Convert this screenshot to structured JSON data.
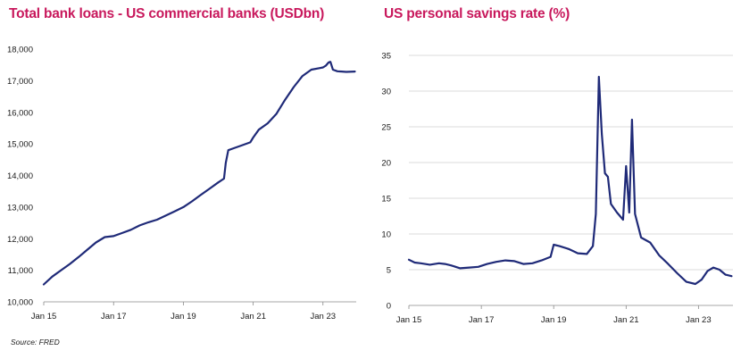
{
  "source": "Source: FRED",
  "colors": {
    "title": "#c8185c",
    "line": "#1f2a78",
    "grid": "#cfcfcf",
    "text": "#1a1a1a"
  },
  "chart_data": [
    {
      "type": "line",
      "title": "Total bank loans - US commercial banks (USDbn)",
      "xlabel": "",
      "ylabel": "",
      "ylim": [
        10000,
        18000
      ],
      "xlim": [
        "2015-01-01",
        "2023-12-15"
      ],
      "grid": false,
      "legend": "none",
      "y_ticks": [
        10000,
        11000,
        12000,
        13000,
        14000,
        15000,
        16000,
        17000,
        18000
      ],
      "y_tick_labels": [
        "10,000",
        "11,000",
        "12,000",
        "13,000",
        "14,000",
        "15,000",
        "16,000",
        "17,000",
        "18,000"
      ],
      "x_ticks": [
        "2015-01-01",
        "2017-01-01",
        "2019-01-01",
        "2021-01-01",
        "2023-01-01"
      ],
      "x_tick_labels": [
        "Jan 15",
        "Jan 17",
        "Jan 19",
        "Jan 21",
        "Jan 23"
      ],
      "series": [
        {
          "x": [
            "2015-01-01",
            "2015-04-01",
            "2015-07-01",
            "2015-10-01",
            "2016-01-01",
            "2016-04-01",
            "2016-07-01",
            "2016-10-01",
            "2017-01-01",
            "2017-04-01",
            "2017-07-01",
            "2017-10-01",
            "2018-01-01",
            "2018-04-01",
            "2018-07-01",
            "2018-10-01",
            "2019-01-01",
            "2019-04-01",
            "2019-07-01",
            "2019-10-01",
            "2020-01-01",
            "2020-03-01",
            "2020-03-20",
            "2020-04-15",
            "2020-06-01",
            "2020-09-01",
            "2020-12-01",
            "2021-01-01",
            "2021-03-01",
            "2021-06-01",
            "2021-09-01",
            "2021-12-01",
            "2022-03-01",
            "2022-06-01",
            "2022-09-01",
            "2022-12-01",
            "2023-01-01",
            "2023-02-01",
            "2023-03-01",
            "2023-03-20",
            "2023-04-15",
            "2023-06-01",
            "2023-09-01",
            "2023-12-01"
          ],
          "values": [
            10550,
            10800,
            11000,
            11200,
            11420,
            11650,
            11880,
            12050,
            12080,
            12180,
            12280,
            12420,
            12520,
            12600,
            12730,
            12860,
            13000,
            13180,
            13380,
            13580,
            13780,
            13900,
            14400,
            14800,
            14850,
            14950,
            15050,
            15200,
            15450,
            15650,
            15950,
            16400,
            16800,
            17150,
            17350,
            17400,
            17420,
            17480,
            17580,
            17600,
            17350,
            17300,
            17280,
            17290
          ]
        }
      ]
    },
    {
      "type": "line",
      "title": "US personal savings rate (%)",
      "xlabel": "",
      "ylabel": "",
      "ylim": [
        0,
        35
      ],
      "xlim": [
        "2015-01-01",
        "2023-12-15"
      ],
      "grid": true,
      "legend": "none",
      "y_ticks": [
        0,
        5,
        10,
        15,
        20,
        25,
        30,
        35
      ],
      "y_tick_labels": [
        "0",
        "5",
        "10",
        "15",
        "20",
        "25",
        "30",
        "35"
      ],
      "x_ticks": [
        "2015-01-01",
        "2017-01-01",
        "2019-01-01",
        "2021-01-01",
        "2023-01-01"
      ],
      "x_tick_labels": [
        "Jan 15",
        "Jan 17",
        "Jan 19",
        "Jan 21",
        "Jan 23"
      ],
      "series": [
        {
          "x": [
            "2015-01-01",
            "2015-03-01",
            "2015-05-01",
            "2015-08-01",
            "2015-11-01",
            "2016-01-01",
            "2016-03-01",
            "2016-06-01",
            "2016-09-01",
            "2016-12-01",
            "2017-03-01",
            "2017-06-01",
            "2017-09-01",
            "2017-12-01",
            "2018-03-01",
            "2018-06-01",
            "2018-09-01",
            "2018-12-01",
            "2019-01-01",
            "2019-03-01",
            "2019-06-01",
            "2019-09-01",
            "2019-12-01",
            "2020-02-01",
            "2020-03-01",
            "2020-04-01",
            "2020-05-01",
            "2020-06-01",
            "2020-07-01",
            "2020-08-01",
            "2020-10-01",
            "2020-12-01",
            "2021-01-01",
            "2021-02-01",
            "2021-03-01",
            "2021-04-01",
            "2021-06-01",
            "2021-09-01",
            "2021-12-01",
            "2022-03-01",
            "2022-06-01",
            "2022-09-01",
            "2022-12-01",
            "2023-02-01",
            "2023-04-01",
            "2023-06-01",
            "2023-08-01",
            "2023-10-01",
            "2023-12-01"
          ],
          "values": [
            6.4,
            6.0,
            5.9,
            5.7,
            5.9,
            5.8,
            5.6,
            5.2,
            5.3,
            5.4,
            5.8,
            6.1,
            6.3,
            6.2,
            5.8,
            5.9,
            6.3,
            6.8,
            8.5,
            8.3,
            7.9,
            7.3,
            7.2,
            8.3,
            12.8,
            32.0,
            24.0,
            18.5,
            18.0,
            14.2,
            13.0,
            12.0,
            19.5,
            13.0,
            26.0,
            12.8,
            9.5,
            8.8,
            7.0,
            5.8,
            4.5,
            3.3,
            3.0,
            3.6,
            4.8,
            5.3,
            5.0,
            4.3,
            4.1
          ]
        }
      ]
    }
  ]
}
